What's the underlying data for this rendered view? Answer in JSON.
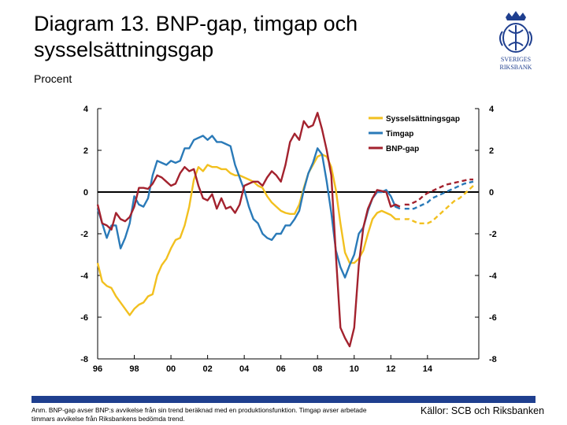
{
  "title": "Diagram 13. BNP-gap, timgap och sysselsättningsgap",
  "unit": "Procent",
  "footnote": "Anm. BNP-gap avser BNP:s avvikelse från sin trend beräknad med en produktionsfunktion. Timgap avser arbetade timmars avvikelse från Riksbankens bedömda trend.",
  "sources": "Källor: SCB och Riksbanken",
  "logo_text": [
    "SVERIGES",
    "RIKSBANK"
  ],
  "colors": {
    "employment": "#f2c01f",
    "hours": "#2a7ab8",
    "gdp": "#a3222e",
    "footer": "#1f3f8f",
    "logo": "#1f3f8f"
  },
  "chart_data": {
    "type": "line",
    "title": "",
    "xlabel": "",
    "ylabel": "Procent",
    "ylim": [
      -8,
      4
    ],
    "yticks": [
      4,
      2,
      0,
      -2,
      -4,
      -6,
      -8
    ],
    "xlim": [
      1996,
      2016.8
    ],
    "xticks": [
      {
        "value": 1996,
        "label": "96"
      },
      {
        "value": 1998,
        "label": "98"
      },
      {
        "value": 2000,
        "label": "00"
      },
      {
        "value": 2002,
        "label": "02"
      },
      {
        "value": 2004,
        "label": "04"
      },
      {
        "value": 2006,
        "label": "06"
      },
      {
        "value": 2008,
        "label": "08"
      },
      {
        "value": 2010,
        "label": "10"
      },
      {
        "value": 2012,
        "label": "12"
      },
      {
        "value": 2014,
        "label": "14"
      }
    ],
    "grid": false,
    "zero_line": true,
    "legend_position": "top-right",
    "forecast_start": 2012.6,
    "series": [
      {
        "name": "Sysselsättningsgap",
        "color_key": "employment",
        "x": [
          1996.0,
          1996.25,
          1996.5,
          1996.75,
          1997.0,
          1997.25,
          1997.5,
          1997.75,
          1998.0,
          1998.25,
          1998.5,
          1998.75,
          1999.0,
          1999.25,
          1999.5,
          1999.75,
          2000.0,
          2000.25,
          2000.5,
          2000.75,
          2001.0,
          2001.25,
          2001.5,
          2001.75,
          2002.0,
          2002.25,
          2002.5,
          2002.75,
          2003.0,
          2003.25,
          2003.5,
          2003.75,
          2004.0,
          2004.25,
          2004.5,
          2004.75,
          2005.0,
          2005.25,
          2005.5,
          2005.75,
          2006.0,
          2006.25,
          2006.5,
          2006.75,
          2007.0,
          2007.25,
          2007.5,
          2007.75,
          2008.0,
          2008.25,
          2008.5,
          2008.75,
          2009.0,
          2009.25,
          2009.5,
          2009.75,
          2010.0,
          2010.25,
          2010.5,
          2010.75,
          2011.0,
          2011.25,
          2011.5,
          2011.75,
          2012.0,
          2012.25,
          2012.5,
          2012.75,
          2013.0,
          2013.25,
          2013.5,
          2013.75,
          2014.0,
          2014.25,
          2014.5,
          2014.75,
          2015.0,
          2015.25,
          2015.5,
          2015.75,
          2016.0,
          2016.25,
          2016.5
        ],
        "y": [
          -3.4,
          -4.3,
          -4.5,
          -4.6,
          -5.0,
          -5.3,
          -5.6,
          -5.9,
          -5.6,
          -5.4,
          -5.3,
          -5.0,
          -4.9,
          -4.0,
          -3.5,
          -3.2,
          -2.7,
          -2.3,
          -2.2,
          -1.6,
          -0.7,
          0.6,
          1.2,
          1.0,
          1.3,
          1.2,
          1.2,
          1.1,
          1.1,
          0.9,
          0.8,
          0.8,
          0.7,
          0.6,
          0.5,
          0.3,
          0.2,
          -0.2,
          -0.5,
          -0.7,
          -0.9,
          -1.0,
          -1.05,
          -1.05,
          -0.6,
          0.2,
          0.9,
          1.3,
          1.7,
          1.8,
          1.7,
          1.2,
          0.1,
          -1.5,
          -2.9,
          -3.4,
          -3.4,
          -3.2,
          -2.8,
          -2.0,
          -1.3,
          -1.0,
          -0.9,
          -1.0,
          -1.1,
          -1.3,
          -1.3,
          -1.3,
          -1.3,
          -1.4,
          -1.5,
          -1.5,
          -1.5,
          -1.4,
          -1.2,
          -1.0,
          -0.8,
          -0.6,
          -0.4,
          -0.3,
          -0.1,
          0.1,
          0.3
        ]
      },
      {
        "name": "Timgap",
        "color_key": "hours",
        "x": [
          1996.0,
          1996.25,
          1996.5,
          1996.75,
          1997.0,
          1997.25,
          1997.5,
          1997.75,
          1998.0,
          1998.25,
          1998.5,
          1998.75,
          1999.0,
          1999.25,
          1999.5,
          1999.75,
          2000.0,
          2000.25,
          2000.5,
          2000.75,
          2001.0,
          2001.25,
          2001.5,
          2001.75,
          2002.0,
          2002.25,
          2002.5,
          2002.75,
          2003.0,
          2003.25,
          2003.5,
          2003.75,
          2004.0,
          2004.25,
          2004.5,
          2004.75,
          2005.0,
          2005.25,
          2005.5,
          2005.75,
          2006.0,
          2006.25,
          2006.5,
          2006.75,
          2007.0,
          2007.25,
          2007.5,
          2007.75,
          2008.0,
          2008.25,
          2008.5,
          2008.75,
          2009.0,
          2009.25,
          2009.5,
          2009.75,
          2010.0,
          2010.25,
          2010.5,
          2010.75,
          2011.0,
          2011.25,
          2011.5,
          2011.75,
          2012.0,
          2012.25,
          2012.5,
          2012.75,
          2013.0,
          2013.25,
          2013.5,
          2013.75,
          2014.0,
          2014.25,
          2014.5,
          2014.75,
          2015.0,
          2015.25,
          2015.5,
          2015.75,
          2016.0,
          2016.25,
          2016.5
        ],
        "y": [
          -0.8,
          -1.5,
          -2.2,
          -1.6,
          -1.6,
          -2.7,
          -2.2,
          -1.5,
          -0.2,
          -0.6,
          -0.7,
          -0.3,
          0.8,
          1.5,
          1.4,
          1.3,
          1.5,
          1.4,
          1.5,
          2.1,
          2.1,
          2.5,
          2.6,
          2.7,
          2.5,
          2.7,
          2.4,
          2.4,
          2.3,
          2.2,
          1.3,
          0.7,
          0.1,
          -0.7,
          -1.3,
          -1.5,
          -2.0,
          -2.2,
          -2.3,
          -2.0,
          -2.0,
          -1.6,
          -1.6,
          -1.3,
          -0.9,
          0.1,
          0.9,
          1.4,
          2.1,
          1.8,
          0.5,
          -1.0,
          -2.8,
          -3.6,
          -4.1,
          -3.5,
          -3.0,
          -2.0,
          -1.7,
          -0.9,
          -0.3,
          0.0,
          0.0,
          0.1,
          -0.2,
          -0.7,
          -0.8,
          -0.8,
          -0.8,
          -0.8,
          -0.7,
          -0.6,
          -0.5,
          -0.3,
          -0.2,
          -0.1,
          0.0,
          0.1,
          0.2,
          0.3,
          0.4,
          0.45,
          0.5
        ]
      },
      {
        "name": "BNP-gap",
        "color_key": "gdp",
        "x": [
          1996.0,
          1996.25,
          1996.5,
          1996.75,
          1997.0,
          1997.25,
          1997.5,
          1997.75,
          1998.0,
          1998.25,
          1998.5,
          1998.75,
          1999.0,
          1999.25,
          1999.5,
          1999.75,
          2000.0,
          2000.25,
          2000.5,
          2000.75,
          2001.0,
          2001.25,
          2001.5,
          2001.75,
          2002.0,
          2002.25,
          2002.5,
          2002.75,
          2003.0,
          2003.25,
          2003.5,
          2003.75,
          2004.0,
          2004.25,
          2004.5,
          2004.75,
          2005.0,
          2005.25,
          2005.5,
          2005.75,
          2006.0,
          2006.25,
          2006.5,
          2006.75,
          2007.0,
          2007.25,
          2007.5,
          2007.75,
          2008.0,
          2008.25,
          2008.5,
          2008.75,
          2009.0,
          2009.25,
          2009.5,
          2009.75,
          2010.0,
          2010.25,
          2010.5,
          2010.75,
          2011.0,
          2011.25,
          2011.5,
          2011.75,
          2012.0,
          2012.25,
          2012.5,
          2012.75,
          2013.0,
          2013.25,
          2013.5,
          2013.75,
          2014.0,
          2014.25,
          2014.5,
          2014.75,
          2015.0,
          2015.25,
          2015.5,
          2015.75,
          2016.0,
          2016.25,
          2016.5
        ],
        "y": [
          -0.6,
          -1.5,
          -1.6,
          -1.8,
          -1.0,
          -1.3,
          -1.4,
          -1.2,
          -0.7,
          0.2,
          0.2,
          0.15,
          0.4,
          0.8,
          0.7,
          0.5,
          0.3,
          0.4,
          0.9,
          1.2,
          1.0,
          1.1,
          0.3,
          -0.3,
          -0.4,
          -0.1,
          -0.8,
          -0.3,
          -0.8,
          -0.7,
          -1.0,
          -0.6,
          0.3,
          0.4,
          0.5,
          0.5,
          0.3,
          0.7,
          1.0,
          0.8,
          0.5,
          1.3,
          2.4,
          2.8,
          2.5,
          3.4,
          3.1,
          3.2,
          3.8,
          3.0,
          2.0,
          0.8,
          -3.0,
          -6.5,
          -7.0,
          -7.4,
          -6.5,
          -3.5,
          -1.7,
          -0.8,
          -0.3,
          0.1,
          0.05,
          0.0,
          -0.7,
          -0.6,
          -0.7,
          -0.6,
          -0.6,
          -0.5,
          -0.4,
          -0.2,
          -0.05,
          0.05,
          0.15,
          0.25,
          0.35,
          0.4,
          0.45,
          0.5,
          0.55,
          0.6,
          0.6
        ]
      }
    ]
  }
}
